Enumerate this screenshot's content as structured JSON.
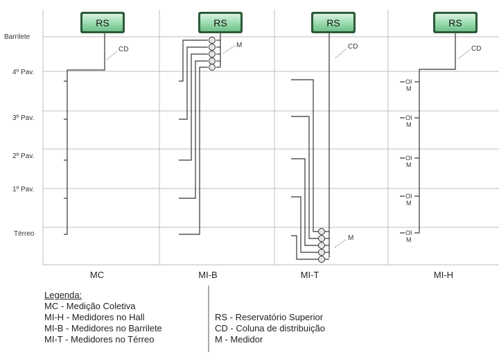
{
  "reservoir_label": "RS",
  "column_label": "CD",
  "meter_label": "M",
  "meter_box_label": "OI",
  "levels": [
    "Barrilete",
    "4º Pav.",
    "3º Pav.",
    "2º Pav.",
    "1º Pav.",
    "Térreo"
  ],
  "systems": [
    "MC",
    "MI-B",
    "MI-T",
    "MI-H"
  ],
  "legend": {
    "title": "Legenda:",
    "left": [
      "MC - Medição Coletiva",
      "MI-H - Medidores no Hall",
      "MI-B - Medidores no Barrilete",
      "MI-T - Medidores no Térreo"
    ],
    "right": [
      "RS - Reservatório Superior",
      "CD - Coluna de distribuição",
      "M - Medidor"
    ]
  },
  "colors": {
    "reservoir_fill": "#8fd6a5",
    "reservoir_border": "#2d5a3a",
    "grid": "#bdbdbd",
    "pipe": "#333333"
  }
}
